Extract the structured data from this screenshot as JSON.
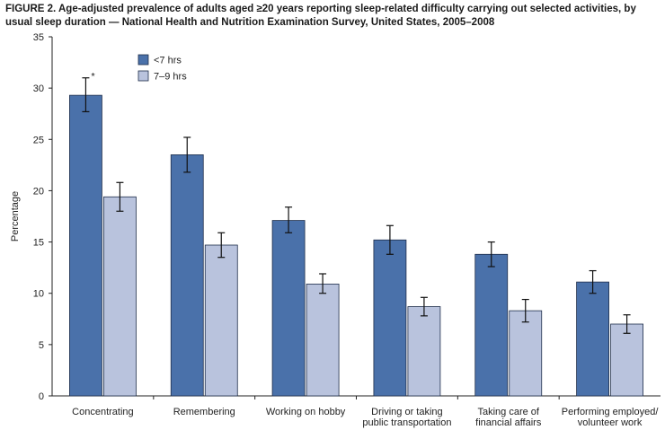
{
  "title": "FIGURE 2. Age-adjusted prevalence of adults aged ≥20 years reporting sleep-related difficulty carrying out selected activities, by usual sleep duration — National Health and Nutrition Examination Survey, United States, 2005–2008",
  "chart_data": {
    "type": "bar",
    "ylabel": "Percentage",
    "ylim": [
      0,
      35
    ],
    "yticks": [
      0,
      5,
      10,
      15,
      20,
      25,
      30,
      35
    ],
    "grid": false,
    "legend": "top-left",
    "categories": [
      [
        "Concentrating"
      ],
      [
        "Remembering"
      ],
      [
        "Working on hobby"
      ],
      [
        "Driving or taking",
        "public transportation"
      ],
      [
        "Taking care of",
        "financial affairs"
      ],
      [
        "Performing employed/",
        "volunteer work"
      ]
    ],
    "series": [
      {
        "name": "<7 hrs",
        "color": "#4a71aa",
        "values": [
          29.3,
          23.5,
          17.1,
          15.2,
          13.8,
          11.1
        ],
        "ci_low": [
          27.7,
          21.8,
          15.9,
          13.8,
          12.6,
          10.0
        ],
        "ci_high": [
          31.0,
          25.2,
          18.4,
          16.6,
          15.0,
          12.2
        ]
      },
      {
        "name": "7–9 hrs",
        "color": "#b9c3dd",
        "values": [
          19.4,
          14.7,
          10.9,
          8.7,
          8.3,
          7.0
        ],
        "ci_low": [
          18.0,
          13.5,
          10.0,
          7.8,
          7.2,
          6.1
        ],
        "ci_high": [
          20.8,
          15.9,
          11.9,
          9.6,
          9.4,
          7.9
        ]
      }
    ],
    "annotations": [
      {
        "text": "*",
        "category": 0,
        "series": 0
      }
    ]
  }
}
